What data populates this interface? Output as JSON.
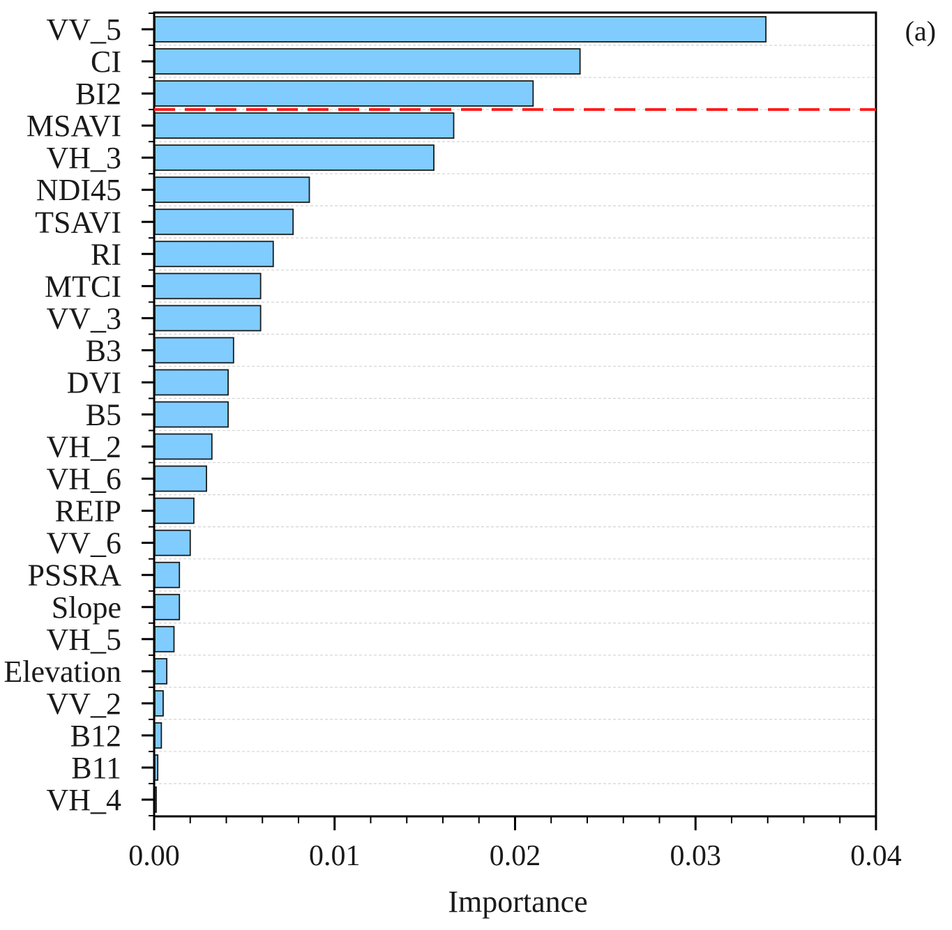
{
  "chart_data": {
    "type": "bar",
    "orientation": "horizontal",
    "panel_label": "(a)",
    "title": "",
    "xlabel": "Importance",
    "ylabel": "",
    "xlim": [
      0,
      0.04
    ],
    "xticks": [
      "0.00",
      "0.01",
      "0.02",
      "0.03",
      "0.04"
    ],
    "categories": [
      "VV_5",
      "CI",
      "BI2",
      "MSAVI",
      "VH_3",
      "NDI45",
      "TSAVI",
      "RI",
      "MTCI",
      "VV_3",
      "B3",
      "DVI",
      "B5",
      "VH_2",
      "VH_6",
      "REIP",
      "VV_6",
      "PSSRA",
      "Slope",
      "VH_5",
      "Elevation",
      "VV_2",
      "B12",
      "B11",
      "VH_4"
    ],
    "values": [
      0.0339,
      0.0236,
      0.021,
      0.0166,
      0.0155,
      0.0086,
      0.0077,
      0.0066,
      0.0059,
      0.0059,
      0.0044,
      0.0041,
      0.0041,
      0.0032,
      0.0029,
      0.0022,
      0.002,
      0.0014,
      0.0014,
      0.0011,
      0.0007,
      0.0005,
      0.0004,
      0.0002,
      0.0001
    ],
    "threshold_after_index": 2,
    "grid": "horizontal dashed",
    "bar_color": "#80CCFF",
    "bar_edge_color": "#1a1a1a",
    "threshold_color": "#FF1A1A"
  }
}
